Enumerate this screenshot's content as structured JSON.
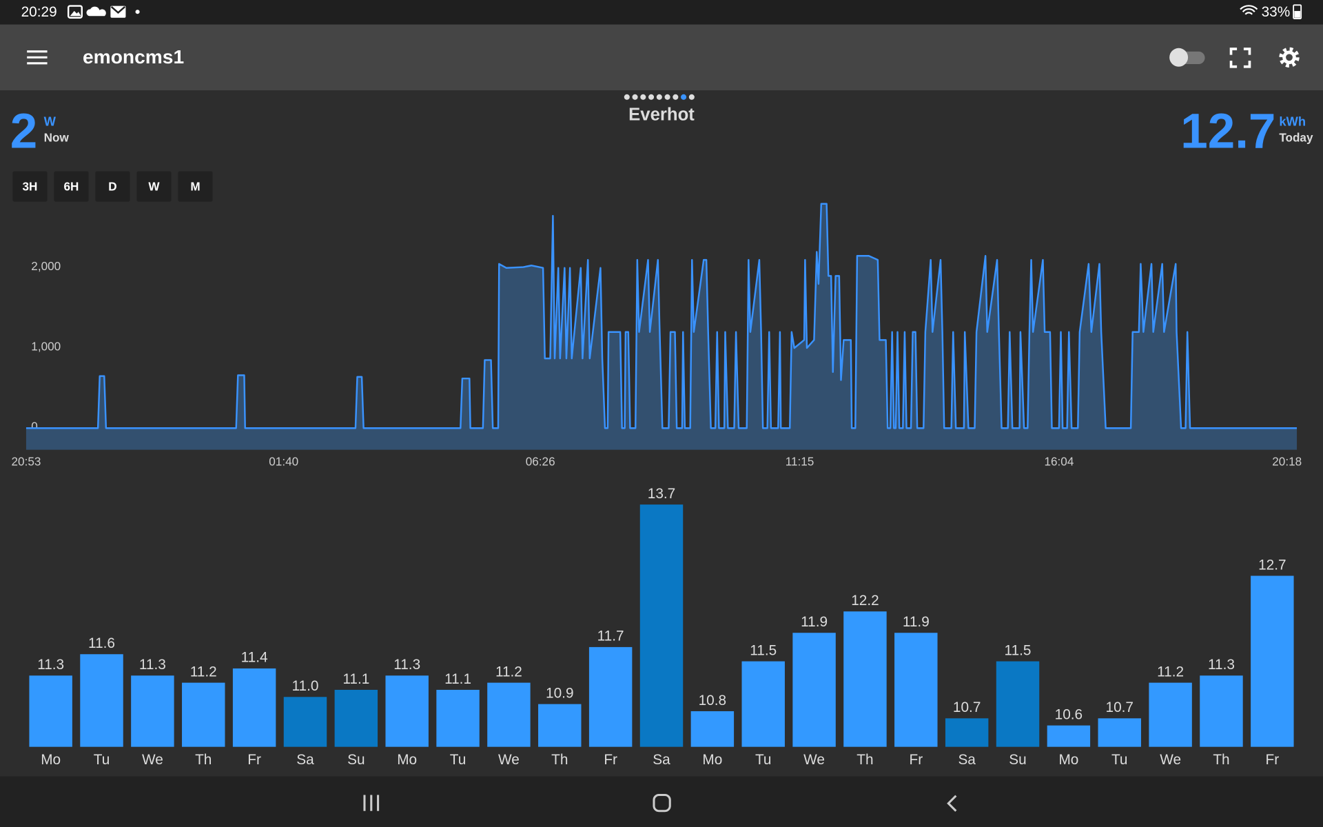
{
  "status_bar": {
    "time": "20:29",
    "battery": "33%"
  },
  "app_bar": {
    "title": "emoncms1"
  },
  "widget": {
    "title": "Everhot",
    "power": {
      "value": 2,
      "unit": "W",
      "label": "Now"
    },
    "energy": {
      "value": 12.7,
      "unit": "kWh",
      "label": "Today"
    },
    "ranges": [
      "3H",
      "6H",
      "D",
      "W",
      "M"
    ]
  },
  "chart_data": [
    {
      "type": "line",
      "color": "#3a93ff",
      "fill": "#33506f",
      "grid": false,
      "x": [
        "20:53",
        "22:13",
        "22:15",
        "22:20",
        "22:22",
        "00:47",
        "00:49",
        "00:56",
        "00:57",
        "03:00",
        "03:02",
        "03:07",
        "03:09",
        "04:57",
        "04:59",
        "05:07",
        "05:08",
        "05:22",
        "05:24",
        "05:31",
        "05:33",
        "05:39",
        "05:40",
        "05:48",
        "06:07",
        "06:16",
        "06:29",
        "06:31",
        "06:37",
        "06:40",
        "06:42",
        "06:46",
        "06:48",
        "06:53",
        "06:55",
        "06:59",
        "07:01",
        "07:11",
        "07:13",
        "07:19",
        "07:21",
        "07:33",
        "07:35",
        "07:38",
        "07:41",
        "07:42",
        "07:55",
        "07:57",
        "08:00",
        "08:01",
        "08:04",
        "08:06",
        "08:12",
        "08:14",
        "08:16",
        "08:26",
        "08:28",
        "08:37",
        "08:39",
        "08:42",
        "08:49",
        "08:51",
        "08:56",
        "08:58",
        "09:04",
        "09:05",
        "09:07",
        "09:13",
        "09:15",
        "09:17",
        "09:28",
        "09:31",
        "09:33",
        "09:36",
        "09:41",
        "09:43",
        "09:45",
        "09:51",
        "09:52",
        "09:55",
        "10:02",
        "10:04",
        "10:07",
        "10:16",
        "10:18",
        "10:20",
        "10:30",
        "10:32",
        "10:34",
        "10:39",
        "10:41",
        "10:43",
        "10:51",
        "10:53",
        "10:54",
        "11:04",
        "11:06",
        "11:09",
        "11:20",
        "11:21",
        "11:23",
        "11:31",
        "11:34",
        "11:36",
        "11:39",
        "11:45",
        "11:47",
        "11:50",
        "11:52",
        "11:55",
        "11:59",
        "12:01",
        "12:04",
        "12:12",
        "12:13",
        "12:17",
        "12:19",
        "12:32",
        "12:42",
        "12:44",
        "12:51",
        "12:53",
        "12:56",
        "12:58",
        "13:00",
        "13:02",
        "13:04",
        "13:06",
        "13:10",
        "13:12",
        "13:14",
        "13:19",
        "13:21",
        "13:24",
        "13:26",
        "13:33",
        "13:35",
        "13:41",
        "13:43",
        "13:52",
        "13:54",
        "13:56",
        "14:04",
        "14:06",
        "14:09",
        "14:18",
        "14:19",
        "14:23",
        "14:30",
        "14:32",
        "14:42",
        "14:44",
        "14:55",
        "14:57",
        "15:00",
        "15:07",
        "15:09",
        "15:12",
        "15:20",
        "15:21",
        "15:25",
        "15:29",
        "15:31",
        "15:33",
        "15:35",
        "15:46",
        "15:48",
        "15:54",
        "15:56",
        "16:04",
        "16:06",
        "16:08",
        "16:13",
        "16:15",
        "16:18",
        "16:25",
        "16:27",
        "16:37",
        "16:40",
        "16:49",
        "16:51",
        "16:56",
        "17:24",
        "17:26",
        "17:33",
        "17:35",
        "17:38",
        "17:47",
        "17:49",
        "17:59",
        "18:01",
        "18:14",
        "18:15",
        "18:20",
        "18:25",
        "18:27",
        "18:30",
        "20:29"
      ],
      "values": [
        0,
        0,
        650,
        650,
        0,
        0,
        660,
        660,
        0,
        0,
        640,
        640,
        0,
        0,
        620,
        620,
        0,
        0,
        850,
        850,
        0,
        0,
        2050,
        2000,
        2010,
        2030,
        2000,
        870,
        870,
        2650,
        870,
        2000,
        870,
        2000,
        870,
        2000,
        870,
        2000,
        870,
        2100,
        870,
        2000,
        870,
        0,
        0,
        1200,
        1200,
        0,
        0,
        1200,
        1200,
        0,
        0,
        2100,
        1200,
        2100,
        1200,
        2100,
        1200,
        0,
        0,
        1200,
        1200,
        0,
        0,
        1200,
        0,
        0,
        2100,
        1200,
        2100,
        2100,
        1200,
        0,
        0,
        1200,
        0,
        0,
        1200,
        0,
        0,
        1200,
        0,
        0,
        2100,
        1200,
        2100,
        1200,
        0,
        0,
        1200,
        0,
        0,
        1200,
        0,
        0,
        1200,
        1000,
        1100,
        2100,
        1000,
        1100,
        2200,
        1800,
        2800,
        2800,
        1900,
        1900,
        700,
        1900,
        1900,
        600,
        1100,
        1100,
        0,
        0,
        2150,
        2150,
        2100,
        1100,
        1100,
        0,
        0,
        1200,
        0,
        0,
        1200,
        0,
        0,
        1200,
        0,
        0,
        1200,
        1200,
        0,
        0,
        1200,
        2100,
        1200,
        2100,
        1200,
        0,
        0,
        1200,
        0,
        0,
        1200,
        0,
        0,
        1200,
        2150,
        1200,
        2100,
        1200,
        0,
        0,
        1200,
        0,
        0,
        1200,
        0,
        0,
        1200,
        2100,
        1200,
        2100,
        1200,
        1200,
        0,
        0,
        1200,
        0,
        0,
        1200,
        0,
        0,
        1200,
        2050,
        1200,
        2050,
        1200,
        0,
        0,
        1200,
        1200,
        2050,
        1200,
        2050,
        1200,
        2050,
        1200,
        2050,
        1200,
        0,
        0,
        1200,
        0,
        0
      ],
      "xlim": [
        "20:53",
        "20:29"
      ],
      "xticks": [
        "20:53",
        "01:40",
        "06:26",
        "11:15",
        "16:04",
        "20:18"
      ],
      "ylim": [
        -270,
        2900
      ],
      "yticks": [
        0,
        {
          "value": 1000,
          "label": "1,000"
        },
        {
          "value": 2000,
          "label": "2,000"
        }
      ]
    },
    {
      "type": "bar",
      "categories": [
        "Mo",
        "Tu",
        "We",
        "Th",
        "Fr",
        "Sa",
        "Su",
        "Mo",
        "Tu",
        "We",
        "Th",
        "Fr",
        "Sa",
        "Mo",
        "Tu",
        "We",
        "Th",
        "Fr",
        "Sa",
        "Su",
        "Mo",
        "Tu",
        "We",
        "Th",
        "Fr"
      ],
      "values": [
        11.3,
        11.6,
        11.3,
        11.2,
        11.4,
        11.0,
        11.1,
        11.3,
        11.1,
        11.2,
        10.9,
        11.7,
        13.7,
        10.8,
        11.5,
        11.9,
        12.2,
        11.9,
        10.7,
        11.5,
        10.6,
        10.7,
        11.2,
        11.3,
        12.7
      ],
      "value_labels": [
        "11.3",
        "11.6",
        "11.3",
        "11.2",
        "11.4",
        "11.0",
        "11.1",
        "11.3",
        "11.1",
        "11.2",
        "10.9",
        "11.7",
        "13.7",
        "10.8",
        "11.5",
        "11.9",
        "12.2",
        "11.9",
        "10.7",
        "11.5",
        "10.6",
        "10.7",
        "11.2",
        "11.3",
        "12.7"
      ],
      "colors": [
        "#3399ff",
        "#3399ff",
        "#3399ff",
        "#3399ff",
        "#3399ff",
        "#0a78c4",
        "#0a78c4",
        "#3399ff",
        "#3399ff",
        "#3399ff",
        "#3399ff",
        "#3399ff",
        "#0a78c4",
        "#3399ff",
        "#3399ff",
        "#3399ff",
        "#3399ff",
        "#3399ff",
        "#0a78c4",
        "#0a78c4",
        "#3399ff",
        "#3399ff",
        "#3399ff",
        "#3399ff",
        "#3399ff"
      ],
      "ylim": [
        10.3,
        13.9
      ]
    }
  ]
}
